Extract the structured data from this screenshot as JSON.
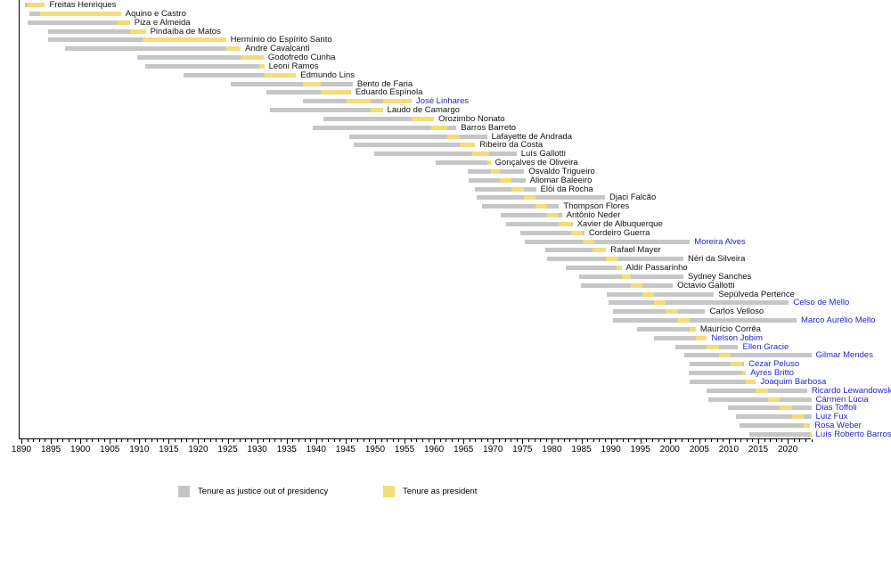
{
  "chart_data": {
    "type": "timeline",
    "description": "Gantt-style timeline of Brazilian Supreme Court (STF) president justices, tenure as justice (gray) vs tenure as court president (yellow)",
    "x_axis": {
      "min": 1890,
      "max": 2024,
      "minor_tick_interval": 1,
      "label_interval": 5,
      "tick_labels": [
        1890,
        1895,
        1900,
        1905,
        1910,
        1915,
        1920,
        1925,
        1930,
        1935,
        1940,
        1945,
        1950,
        1955,
        1960,
        1965,
        1970,
        1975,
        1980,
        1985,
        1990,
        1995,
        2000,
        2005,
        2010,
        2015,
        2020
      ]
    },
    "colors": {
      "tenure_gray": "#c6c6c6",
      "president_yellow": "#f3dc79",
      "name_black": "#111111",
      "name_blue": "#2424cc"
    },
    "legend": {
      "items": [
        {
          "label": "Tenure as justice out of presidency",
          "color": "#c6c6c6"
        },
        {
          "label": "Tenure as president",
          "color": "#f3dc79"
        }
      ]
    },
    "justices": [
      {
        "name": "Freitas Henriques",
        "name_color": "black",
        "justice": [
          1890.6,
          1894.0
        ],
        "president": [
          [
            1891.1,
            1894.0
          ]
        ]
      },
      {
        "name": "Aquino e Castro",
        "name_color": "black",
        "justice": [
          1891.3,
          1906.9
        ],
        "president": [
          [
            1893.2,
            1906.9
          ]
        ]
      },
      {
        "name": "Piza e Almeida",
        "name_color": "black",
        "justice": [
          1891.0,
          1908.4
        ],
        "president": [
          [
            1906.3,
            1908.4
          ]
        ]
      },
      {
        "name": "Pindaíba de Matos",
        "name_color": "black",
        "justice": [
          1894.6,
          1911.1
        ],
        "president": [
          [
            1908.4,
            1911.1
          ]
        ]
      },
      {
        "name": "Hermínio do Espírito Santo",
        "name_color": "black",
        "justice": [
          1894.6,
          1924.7
        ],
        "president": [
          [
            1910.6,
            1924.7
          ]
        ]
      },
      {
        "name": "André Cavalcanti",
        "name_color": "black",
        "justice": [
          1897.4,
          1927.2
        ],
        "president": [
          [
            1924.7,
            1927.2
          ]
        ]
      },
      {
        "name": "Godofredo Cunha",
        "name_color": "black",
        "justice": [
          1909.6,
          1931.1
        ],
        "president": [
          [
            1927.2,
            1931.1
          ]
        ]
      },
      {
        "name": "Leoni Ramos",
        "name_color": "black",
        "justice": [
          1911.0,
          1931.2
        ],
        "president": [
          [
            1930.3,
            1931.2
          ]
        ]
      },
      {
        "name": "Edmundo Lins",
        "name_color": "black",
        "justice": [
          1917.5,
          1936.6
        ],
        "president": [
          [
            1931.2,
            1936.6
          ]
        ]
      },
      {
        "name": "Bento de Faria",
        "name_color": "black",
        "justice": [
          1925.5,
          1946.2
        ],
        "president": [
          [
            1937.8,
            1940.8
          ]
        ]
      },
      {
        "name": "Eduardo Espínola",
        "name_color": "black",
        "justice": [
          1931.5,
          1945.9
        ],
        "president": [
          [
            1940.8,
            1945.9
          ]
        ]
      },
      {
        "name": "José Linhares",
        "name_color": "blue",
        "justice": [
          1937.8,
          1956.2
        ],
        "president": [
          [
            1945.2,
            1949.3
          ],
          [
            1951.3,
            1956.2
          ]
        ]
      },
      {
        "name": "Laudo de Camargo",
        "name_color": "black",
        "justice": [
          1932.2,
          1951.3
        ],
        "president": [
          [
            1949.3,
            1951.3
          ]
        ]
      },
      {
        "name": "Orozimbo Nonato",
        "name_color": "black",
        "justice": [
          1941.2,
          1960.0
        ],
        "president": [
          [
            1956.2,
            1960.0
          ]
        ]
      },
      {
        "name": "Barros Barreto",
        "name_color": "black",
        "justice": [
          1939.5,
          1963.8
        ],
        "president": [
          [
            1959.6,
            1962.2
          ]
        ]
      },
      {
        "name": "Lafayette de Andrada",
        "name_color": "black",
        "justice": [
          1945.6,
          1969.0
        ],
        "president": [
          [
            1962.2,
            1964.3
          ]
        ]
      },
      {
        "name": "Ribeiro da Costa",
        "name_color": "black",
        "justice": [
          1946.4,
          1967.0
        ],
        "president": [
          [
            1964.3,
            1967.0
          ]
        ]
      },
      {
        "name": "Luís Gallotti",
        "name_color": "black",
        "justice": [
          1949.9,
          1974.0
        ],
        "president": [
          [
            1966.5,
            1969.3
          ]
        ]
      },
      {
        "name": "Gonçalves de Oliveira",
        "name_color": "black",
        "justice": [
          1960.3,
          1969.6
        ],
        "president": [
          [
            1969.0,
            1969.6
          ]
        ]
      },
      {
        "name": "Osvaldo Trigueiro",
        "name_color": "black",
        "justice": [
          1965.8,
          1975.3
        ],
        "president": [
          [
            1969.6,
            1971.2
          ]
        ]
      },
      {
        "name": "Aliomar Baleeiro",
        "name_color": "black",
        "justice": [
          1965.9,
          1975.5
        ],
        "president": [
          [
            1971.2,
            1973.2
          ]
        ]
      },
      {
        "name": "Elói da Rocha",
        "name_color": "black",
        "justice": [
          1966.9,
          1977.3
        ],
        "president": [
          [
            1973.2,
            1975.2
          ]
        ]
      },
      {
        "name": "Djaci Falcão",
        "name_color": "black",
        "justice": [
          1967.2,
          1989.0
        ],
        "president": [
          [
            1975.2,
            1977.2
          ]
        ]
      },
      {
        "name": "Thompson Flores",
        "name_color": "black",
        "justice": [
          1968.2,
          1981.2
        ],
        "president": [
          [
            1977.2,
            1979.2
          ]
        ]
      },
      {
        "name": "Antônio Neder",
        "name_color": "black",
        "justice": [
          1971.3,
          1981.7
        ],
        "president": [
          [
            1979.2,
            1981.2
          ]
        ]
      },
      {
        "name": "Xavier de Albuquerque",
        "name_color": "black",
        "justice": [
          1972.3,
          1983.5
        ],
        "president": [
          [
            1981.2,
            1983.2
          ]
        ]
      },
      {
        "name": "Cordeiro Guerra",
        "name_color": "black",
        "justice": [
          1974.6,
          1985.5
        ],
        "president": [
          [
            1983.2,
            1985.2
          ]
        ]
      },
      {
        "name": "Moreira Alves",
        "name_color": "blue",
        "justice": [
          1975.4,
          2003.4
        ],
        "president": [
          [
            1985.2,
            1987.2
          ]
        ]
      },
      {
        "name": "Rafael Mayer",
        "name_color": "black",
        "justice": [
          1978.9,
          1989.2
        ],
        "president": [
          [
            1986.9,
            1989.2
          ]
        ]
      },
      {
        "name": "Néri da Silveira",
        "name_color": "black",
        "justice": [
          1979.2,
          2002.3
        ],
        "president": [
          [
            1989.2,
            1991.3
          ]
        ]
      },
      {
        "name": "Aldir Passarinho",
        "name_color": "black",
        "justice": [
          1982.3,
          1991.8
        ],
        "president": [
          [
            1990.9,
            1991.8
          ]
        ]
      },
      {
        "name": "Sydney Sanches",
        "name_color": "black",
        "justice": [
          1984.6,
          2002.3
        ],
        "president": [
          [
            1991.8,
            1993.4
          ]
        ]
      },
      {
        "name": "Octavio Gallotti",
        "name_color": "black",
        "justice": [
          1984.9,
          2000.5
        ],
        "president": [
          [
            1993.4,
            1995.4
          ]
        ]
      },
      {
        "name": "Sepúlveda Pertence",
        "name_color": "black",
        "justice": [
          1989.3,
          2007.5
        ],
        "president": [
          [
            1995.4,
            1997.3
          ]
        ]
      },
      {
        "name": "Celso de Mello",
        "name_color": "blue",
        "justice": [
          1989.6,
          2020.2
        ],
        "president": [
          [
            1997.3,
            1999.3
          ]
        ]
      },
      {
        "name": "Carlos Velloso",
        "name_color": "black",
        "justice": [
          1990.4,
          2006.0
        ],
        "president": [
          [
            1999.3,
            2001.4
          ]
        ]
      },
      {
        "name": "Marco Aurélio Mello",
        "name_color": "blue",
        "justice": [
          1990.4,
          2021.5
        ],
        "president": [
          [
            2001.4,
            2003.4
          ]
        ]
      },
      {
        "name": "Maurício Corrêa",
        "name_color": "black",
        "justice": [
          1994.4,
          2004.4
        ],
        "president": [
          [
            2003.4,
            2004.4
          ]
        ]
      },
      {
        "name": "Nelson Jobim",
        "name_color": "blue",
        "justice": [
          1997.3,
          2006.3
        ],
        "president": [
          [
            2004.4,
            2006.3
          ]
        ]
      },
      {
        "name": "Ellen Gracie",
        "name_color": "blue",
        "justice": [
          2000.9,
          2011.6
        ],
        "president": [
          [
            2006.3,
            2008.3
          ]
        ]
      },
      {
        "name": "Gilmar Mendes",
        "name_color": "blue",
        "justice": [
          2002.4,
          2024.0
        ],
        "president": [
          [
            2008.3,
            2010.3
          ]
        ]
      },
      {
        "name": "Cezar Peluso",
        "name_color": "blue",
        "justice": [
          2003.4,
          2012.6
        ],
        "president": [
          [
            2010.3,
            2012.3
          ]
        ]
      },
      {
        "name": "Ayres Britto",
        "name_color": "blue",
        "justice": [
          2003.2,
          2012.9
        ],
        "president": [
          [
            2012.3,
            2012.9
          ]
        ]
      },
      {
        "name": "Joaquim Barbosa",
        "name_color": "blue",
        "justice": [
          2003.4,
          2014.6
        ],
        "president": [
          [
            2012.9,
            2014.6
          ]
        ]
      },
      {
        "name": "Ricardo Lewandowski",
        "name_color": "blue",
        "justice": [
          2006.2,
          2023.3
        ],
        "president": [
          [
            2014.6,
            2016.7
          ]
        ]
      },
      {
        "name": "Cármen Lúcia",
        "name_color": "blue",
        "justice": [
          2006.5,
          2024.0
        ],
        "president": [
          [
            2016.7,
            2018.7
          ]
        ]
      },
      {
        "name": "Dias Toffoli",
        "name_color": "blue",
        "justice": [
          2009.8,
          2024.0
        ],
        "president": [
          [
            2018.7,
            2020.7
          ]
        ]
      },
      {
        "name": "Luiz Fux",
        "name_color": "blue",
        "justice": [
          2011.2,
          2024.0
        ],
        "president": [
          [
            2020.7,
            2022.7
          ]
        ]
      },
      {
        "name": "Rosa Weber",
        "name_color": "blue",
        "justice": [
          2011.9,
          2023.8
        ],
        "president": [
          [
            2022.7,
            2023.8
          ]
        ]
      },
      {
        "name": "Luís Roberto Barroso",
        "name_color": "blue",
        "justice": [
          2013.5,
          2024.0
        ],
        "president": [
          [
            2023.7,
            2024.0
          ]
        ]
      }
    ]
  }
}
